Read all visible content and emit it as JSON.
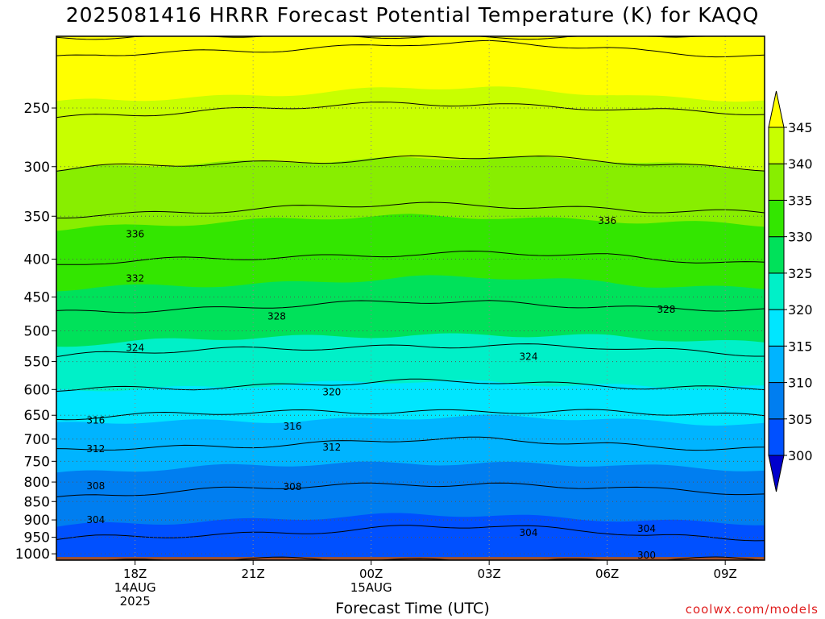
{
  "title": "2025081416 HRRR Forecast Potential Temperature (K) for KAQQ",
  "credit": "coolwx.com/models",
  "chart_data": {
    "type": "heatmap",
    "title": "2025081416 HRRR Forecast Potential Temperature (K) for KAQQ",
    "xlabel": "Forecast Time (UTC)",
    "ylabel": "",
    "x_hours": [
      16,
      17,
      18,
      19,
      20,
      21,
      22,
      23,
      24,
      25,
      26,
      27,
      28,
      29,
      30,
      31,
      32,
      33,
      34
    ],
    "xlim": [
      16,
      34
    ],
    "x_ticks": [
      {
        "hour": 18,
        "lines": [
          "18Z",
          "14AUG",
          "2025"
        ]
      },
      {
        "hour": 21,
        "lines": [
          "21Z"
        ]
      },
      {
        "hour": 24,
        "lines": [
          "00Z",
          "15AUG"
        ]
      },
      {
        "hour": 27,
        "lines": [
          "03Z"
        ]
      },
      {
        "hour": 30,
        "lines": [
          "06Z"
        ]
      },
      {
        "hour": 33,
        "lines": [
          "09Z"
        ]
      }
    ],
    "y_ticks": [
      250,
      300,
      350,
      400,
      450,
      500,
      550,
      600,
      650,
      700,
      750,
      800,
      850,
      900,
      950,
      1000
    ],
    "ylim": [
      1020,
      200
    ],
    "y_scale": "log-pressure",
    "surface_pressure_hpa": 1010,
    "colorbar": {
      "levels": [
        300,
        305,
        310,
        315,
        320,
        325,
        330,
        335,
        340,
        345
      ],
      "tick_labels": [
        "300",
        "305",
        "310",
        "315",
        "320",
        "325",
        "330",
        "335",
        "340",
        "345"
      ],
      "colors": [
        "#0000cc",
        "#0050ff",
        "#007ef0",
        "#00b4ff",
        "#00e6ff",
        "#00f0c8",
        "#00e15a",
        "#33e600",
        "#88ee00",
        "#c8ff00",
        "#ffff00"
      ],
      "surface_color": "#a0522d"
    },
    "contour_interval_k": 4,
    "contour_labels": [
      {
        "value": "336",
        "hour": 18.0,
        "pressure": 370
      },
      {
        "value": "336",
        "hour": 30.0,
        "pressure": 355
      },
      {
        "value": "332",
        "hour": 18.0,
        "pressure": 425
      },
      {
        "value": "328",
        "hour": 21.6,
        "pressure": 478
      },
      {
        "value": "328",
        "hour": 31.5,
        "pressure": 468
      },
      {
        "value": "324",
        "hour": 18.0,
        "pressure": 527
      },
      {
        "value": "324",
        "hour": 28.0,
        "pressure": 542
      },
      {
        "value": "320",
        "hour": 23.0,
        "pressure": 605
      },
      {
        "value": "316",
        "hour": 17.0,
        "pressure": 660
      },
      {
        "value": "316",
        "hour": 22.0,
        "pressure": 673
      },
      {
        "value": "312",
        "hour": 17.0,
        "pressure": 722
      },
      {
        "value": "312",
        "hour": 23.0,
        "pressure": 718
      },
      {
        "value": "308",
        "hour": 17.0,
        "pressure": 810
      },
      {
        "value": "308",
        "hour": 22.0,
        "pressure": 812
      },
      {
        "value": "304",
        "hour": 17.0,
        "pressure": 900
      },
      {
        "value": "304",
        "hour": 28.0,
        "pressure": 937
      },
      {
        "value": "304",
        "hour": 31.0,
        "pressure": 925
      },
      {
        "value": "300",
        "hour": 31.0,
        "pressure": 1005
      }
    ],
    "theta_profile_k_by_pressure": {
      "1000": 302.0,
      "950": 303.8,
      "900": 305.0,
      "850": 307.2,
      "800": 308.6,
      "750": 310.6,
      "700": 312.6,
      "650": 315.8,
      "600": 319.6,
      "550": 323.0,
      "500": 325.8,
      "450": 329.0,
      "400": 332.0,
      "350": 335.5,
      "300": 339.8,
      "250": 344.2,
      "200": 349.0
    },
    "theta_time_offset_k": [
      0.5,
      0.3,
      0.2,
      0.1,
      0.0,
      -0.1,
      -0.2,
      -0.3,
      -0.4,
      -0.5,
      -0.5,
      -0.5,
      -0.4,
      -0.3,
      -0.2,
      0.0,
      0.1,
      0.2,
      0.3
    ],
    "grid": true,
    "legend": "right"
  }
}
